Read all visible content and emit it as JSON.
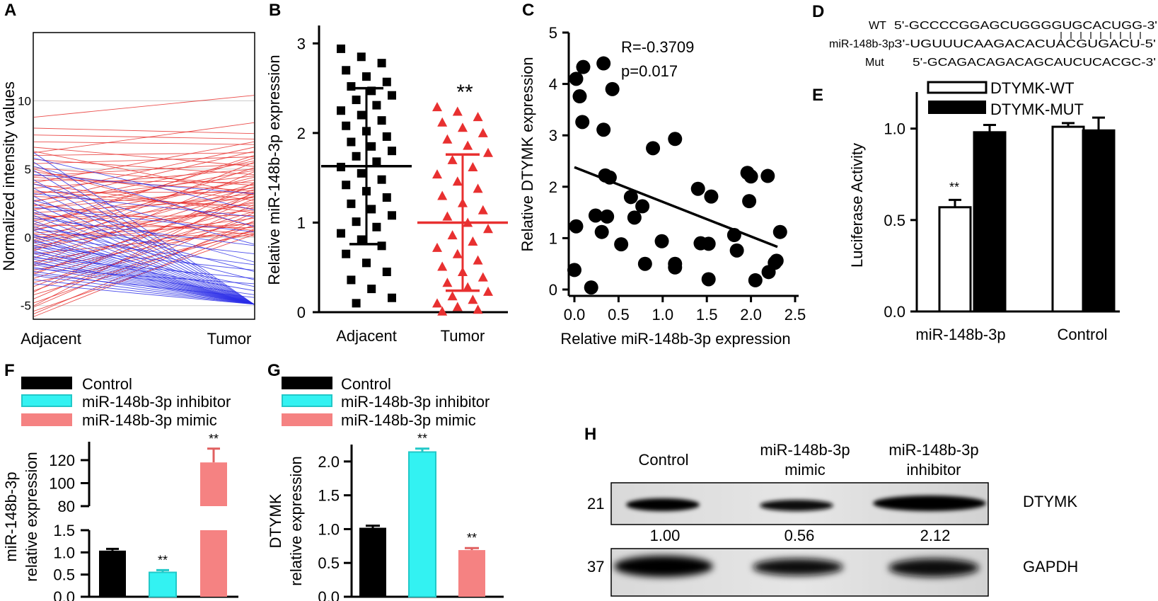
{
  "colors": {
    "red": "#e8302e",
    "blue": "#2b2ee8",
    "cyan": "#33f2f2",
    "salmon": "#f58282",
    "black": "#000000",
    "bar_red": "#e83030"
  },
  "panels": {
    "a": {
      "letter": "A"
    },
    "b": {
      "letter": "B"
    },
    "c": {
      "letter": "C"
    },
    "d": {
      "letter": "D",
      "wt_label": "WT",
      "wt_seq": "5'-GCCCCGGAGCUGGGGUGCACUGG-3'",
      "mir_label": "miR-148b-3p",
      "mir_seq": "3'-UGUUUCAAGACACUACGUGACU-5'",
      "mut_label": "Mut",
      "mut_seq": "5'-GCAGACAGACAGCAUCUCACGC-3'"
    },
    "e": {
      "letter": "E"
    },
    "f": {
      "letter": "F"
    },
    "g": {
      "letter": "G"
    },
    "h": {
      "letter": "H",
      "lanes": [
        "Control",
        "miR-148b-3p",
        "miR-148b-3p"
      ],
      "lanes_line2": [
        "",
        "mimic",
        "inhibitor"
      ],
      "band1_kda": "21",
      "band1_label": "DTYMK",
      "band2_kda": "37",
      "band2_label": "GAPDH",
      "quant": [
        "1.00",
        "0.56",
        "2.12"
      ]
    }
  },
  "chart_data": [
    {
      "id": "A",
      "type": "line",
      "title": "",
      "xlabel": "",
      "ylabel": "Normalized intensity values",
      "categories": [
        "Adjacent",
        "Tumor"
      ],
      "y_ticks": [
        "-5",
        "0",
        "5",
        "10"
      ],
      "ylim": [
        -6,
        15
      ],
      "grid": true,
      "series": [
        {
          "name": "red",
          "values": [
            [
              -5.8,
              0.6
            ],
            [
              -5.6,
              1.2
            ],
            [
              -5.4,
              0.2
            ],
            [
              -5.1,
              1.8
            ],
            [
              -4.8,
              0.9
            ],
            [
              -4.5,
              2.4
            ],
            [
              -4.2,
              0.5
            ],
            [
              -3.9,
              1.5
            ],
            [
              -3.6,
              2.8
            ],
            [
              -3.3,
              0.3
            ],
            [
              -3.0,
              1.9
            ],
            [
              -2.7,
              3.2
            ],
            [
              -2.4,
              0.8
            ],
            [
              -2.1,
              2.2
            ],
            [
              -1.8,
              1.1
            ],
            [
              -1.5,
              3.5
            ],
            [
              -1.2,
              0.4
            ],
            [
              -0.9,
              2.6
            ],
            [
              -0.6,
              1.4
            ],
            [
              -0.3,
              3.9
            ],
            [
              0.0,
              1.0
            ],
            [
              0.3,
              2.0
            ],
            [
              0.6,
              3.0
            ],
            [
              0.9,
              0.7
            ],
            [
              1.2,
              4.2
            ],
            [
              1.5,
              1.6
            ],
            [
              1.8,
              2.9
            ],
            [
              2.1,
              3.6
            ],
            [
              2.4,
              0.5
            ],
            [
              2.7,
              4.5
            ],
            [
              3.0,
              2.3
            ],
            [
              3.3,
              3.3
            ],
            [
              3.6,
              5.0
            ],
            [
              3.9,
              1.8
            ],
            [
              4.2,
              4.0
            ],
            [
              4.5,
              5.4
            ],
            [
              4.8,
              2.7
            ],
            [
              5.1,
              3.8
            ],
            [
              5.4,
              5.9
            ],
            [
              5.7,
              4.6
            ],
            [
              6.0,
              6.2
            ],
            [
              6.3,
              3.1
            ],
            [
              6.6,
              5.2
            ],
            [
              7.0,
              6.8
            ],
            [
              7.5,
              7.2
            ],
            [
              8.0,
              7.6
            ],
            [
              8.8,
              10.4
            ],
            [
              -0.4,
              2.5
            ],
            [
              0.2,
              0.1
            ],
            [
              1.0,
              5.8
            ],
            [
              2.0,
              4.9
            ],
            [
              -1.0,
              5.5
            ],
            [
              -2.0,
              4.8
            ],
            [
              0.7,
              6.0
            ],
            [
              1.7,
              0.2
            ],
            [
              2.6,
              6.3
            ],
            [
              3.4,
              2.1
            ],
            [
              4.4,
              3.4
            ],
            [
              -0.8,
              3.7
            ],
            [
              -2.6,
              3.0
            ],
            [
              -4.0,
              4.0
            ],
            [
              -5.0,
              3.3
            ],
            [
              5.0,
              0.8
            ],
            [
              4.0,
              7.0
            ],
            [
              0.5,
              4.4
            ],
            [
              1.3,
              3.2
            ],
            [
              2.3,
              5.6
            ],
            [
              3.1,
              6.6
            ],
            [
              6.2,
              8.4
            ],
            [
              -0.2,
              5.1
            ]
          ]
        },
        {
          "name": "blue",
          "values": [
            [
              6.2,
              -4.9
            ],
            [
              5.5,
              -4.9
            ],
            [
              4.9,
              -4.9
            ],
            [
              4.2,
              -4.9
            ],
            [
              3.6,
              -4.9
            ],
            [
              3.0,
              -4.9
            ],
            [
              2.5,
              -4.9
            ],
            [
              2.0,
              -4.9
            ],
            [
              1.6,
              -4.9
            ],
            [
              1.2,
              -4.9
            ],
            [
              0.8,
              -4.9
            ],
            [
              0.5,
              -4.9
            ],
            [
              0.2,
              -4.9
            ],
            [
              0.0,
              -4.9
            ],
            [
              -0.2,
              -4.9
            ],
            [
              -0.4,
              -4.9
            ],
            [
              -0.6,
              -4.9
            ],
            [
              -0.8,
              -4.9
            ],
            [
              -1.0,
              -4.9
            ],
            [
              -1.2,
              -4.9
            ],
            [
              -1.4,
              -4.9
            ],
            [
              -1.6,
              -4.9
            ],
            [
              -1.8,
              -4.9
            ],
            [
              -2.0,
              -4.9
            ],
            [
              -2.2,
              -4.9
            ],
            [
              -2.5,
              -4.9
            ],
            [
              -2.8,
              -4.9
            ],
            [
              -3.1,
              -4.9
            ],
            [
              -3.4,
              -4.9
            ],
            [
              5.8,
              2.0
            ],
            [
              5.2,
              0.8
            ],
            [
              4.6,
              3.2
            ],
            [
              3.9,
              -0.5
            ],
            [
              3.2,
              1.5
            ],
            [
              2.7,
              -1.8
            ],
            [
              2.2,
              0.4
            ],
            [
              1.8,
              -2.5
            ],
            [
              1.4,
              -0.6
            ],
            [
              1.0,
              -3.1
            ],
            [
              0.6,
              -1.2
            ],
            [
              0.1,
              -2.0
            ],
            [
              -0.3,
              -3.6
            ],
            [
              -0.7,
              -2.4
            ],
            [
              -1.1,
              -3.9
            ],
            [
              -1.5,
              -3.0
            ],
            [
              -1.9,
              -4.2
            ],
            [
              -2.3,
              -3.4
            ],
            [
              -2.7,
              -4.4
            ]
          ]
        }
      ]
    },
    {
      "id": "B",
      "type": "scatter",
      "title": "",
      "xlabel": "",
      "ylabel": "Relative miR-148b-3p expression",
      "categories": [
        "Adjacent",
        "Tumor"
      ],
      "y_ticks": [
        "0",
        "1",
        "2",
        "3"
      ],
      "ylim": [
        0,
        3.2
      ],
      "significance": "**",
      "series": [
        {
          "name": "Adjacent",
          "marker": "square",
          "mean": 1.63,
          "sd": 0.87,
          "values": [
            2.94,
            2.85,
            2.78,
            2.7,
            2.63,
            2.57,
            2.52,
            2.47,
            2.42,
            2.37,
            2.31,
            2.25,
            2.2,
            2.14,
            2.08,
            2.02,
            1.96,
            1.9,
            1.85,
            1.8,
            1.74,
            1.68,
            1.62,
            1.55,
            1.48,
            1.42,
            1.35,
            1.28,
            1.21,
            1.15,
            1.08,
            1.01,
            0.95,
            0.88,
            0.81,
            0.74,
            0.65,
            0.55,
            0.45,
            0.36,
            0.26,
            0.16,
            0.1
          ]
        },
        {
          "name": "Tumor",
          "marker": "triangle",
          "mean": 1.0,
          "sd": 0.76,
          "values": [
            2.29,
            2.24,
            2.18,
            2.12,
            2.06,
            2.0,
            1.93,
            1.86,
            1.78,
            1.7,
            1.62,
            1.54,
            1.46,
            1.38,
            1.3,
            1.22,
            1.14,
            1.07,
            1.0,
            0.93,
            0.86,
            0.79,
            0.72,
            0.65,
            0.58,
            0.51,
            0.45,
            0.39,
            0.33,
            0.28,
            0.23,
            0.18,
            0.14,
            0.1,
            0.06,
            0.03,
            0.01
          ]
        }
      ]
    },
    {
      "id": "C",
      "type": "scatter",
      "title": "",
      "xlabel": "Relative miR-148b-3p expression",
      "ylabel": "Relative DTYMK  expression",
      "x_ticks": [
        "0.0",
        "0.5",
        "1.0",
        "1.5",
        "2.0",
        "2.5"
      ],
      "y_ticks": [
        "0",
        "1",
        "2",
        "3",
        "4",
        "5"
      ],
      "xlim": [
        0,
        2.5
      ],
      "ylim": [
        0,
        5
      ],
      "annotation_r": "R=-0.3709",
      "annotation_p": "p=0.017",
      "fit_line": {
        "x": [
          0.0,
          2.3
        ],
        "y": [
          2.38,
          0.83
        ]
      },
      "points": [
        [
          0.02,
          4.1
        ],
        [
          0.1,
          4.33
        ],
        [
          0.33,
          4.4
        ],
        [
          0.06,
          3.76
        ],
        [
          0.43,
          3.9
        ],
        [
          0.09,
          3.26
        ],
        [
          0.33,
          3.11
        ],
        [
          1.14,
          2.93
        ],
        [
          0.89,
          2.75
        ],
        [
          0.35,
          2.22
        ],
        [
          0.4,
          2.18
        ],
        [
          0.64,
          1.8
        ],
        [
          0.77,
          1.62
        ],
        [
          0.68,
          1.4
        ],
        [
          0.24,
          1.44
        ],
        [
          0.37,
          1.42
        ],
        [
          0.02,
          1.23
        ],
        [
          0.31,
          1.12
        ],
        [
          0.53,
          0.88
        ],
        [
          0.99,
          0.94
        ],
        [
          0.8,
          0.5
        ],
        [
          1.14,
          0.5
        ],
        [
          1.14,
          0.43
        ],
        [
          1.4,
          1.96
        ],
        [
          1.55,
          1.81
        ],
        [
          1.96,
          2.27
        ],
        [
          2.0,
          2.2
        ],
        [
          2.19,
          2.21
        ],
        [
          1.98,
          1.72
        ],
        [
          1.43,
          0.9
        ],
        [
          1.52,
          0.89
        ],
        [
          1.81,
          1.06
        ],
        [
          1.84,
          0.76
        ],
        [
          1.52,
          0.2
        ],
        [
          2.05,
          0.18
        ],
        [
          2.2,
          0.34
        ],
        [
          2.27,
          0.52
        ],
        [
          2.29,
          0.56
        ],
        [
          2.33,
          1.12
        ],
        [
          0.0,
          0.38
        ],
        [
          0.19,
          0.04
        ]
      ]
    },
    {
      "id": "E",
      "type": "bar",
      "title": "",
      "xlabel": "",
      "ylabel": "Luciferase Activity",
      "categories": [
        "miR-148b-3p",
        "Control"
      ],
      "y_ticks": [
        "0.0",
        "0.5",
        "1.0"
      ],
      "ylim": [
        0,
        1.2
      ],
      "legend": "top-left",
      "series": [
        {
          "name": "DTYMK-WT",
          "values": [
            0.57,
            1.01
          ],
          "errors": [
            0.04,
            0.02
          ]
        },
        {
          "name": "DTYMK-MUT",
          "values": [
            0.98,
            0.99
          ],
          "errors": [
            0.04,
            0.07
          ]
        }
      ],
      "significance": [
        "**",
        ""
      ]
    },
    {
      "id": "F",
      "type": "bar",
      "title": "",
      "xlabel": "",
      "ylabel": "miR-148b-3p relative expression",
      "ylabel_line1": "miR-148b-3p",
      "ylabel_line2": "relative expression",
      "categories": [
        "Control",
        "miR-148b-3p inhibitor",
        "miR-148b-3p mimic"
      ],
      "legend_labels": [
        "Control",
        "miR-148b-3p inhibitor",
        "miR-148b-3p mimic"
      ],
      "values": [
        1.04,
        0.55,
        118
      ],
      "errors": [
        0.04,
        0.05,
        12
      ],
      "y_ticks_lower": [
        "0.0",
        "0.5",
        "1.0",
        "1.5"
      ],
      "y_ticks_upper": [
        "80",
        "100",
        "120"
      ],
      "broken_axis": {
        "lower": [
          0,
          1.5
        ],
        "upper": [
          80,
          130
        ]
      },
      "significance": [
        "",
        "**",
        "**"
      ]
    },
    {
      "id": "G",
      "type": "bar",
      "title": "",
      "xlabel": "",
      "ylabel": "DTYMK relative expression",
      "ylabel_line1": "DTYMK",
      "ylabel_line2": "relative expression",
      "categories": [
        "Control",
        "miR-148b-3p inhibitor",
        "miR-148b-3p mimic"
      ],
      "legend_labels": [
        "Control",
        "miR-148b-3p inhibitor",
        "miR-148b-3p mimic"
      ],
      "values": [
        1.02,
        2.14,
        0.69
      ],
      "errors": [
        0.03,
        0.05,
        0.03
      ],
      "y_ticks": [
        "0.0",
        "0.5",
        "1.0",
        "1.5",
        "2.0"
      ],
      "ylim": [
        0,
        2.25
      ],
      "significance": [
        "",
        "**",
        "**"
      ]
    }
  ]
}
